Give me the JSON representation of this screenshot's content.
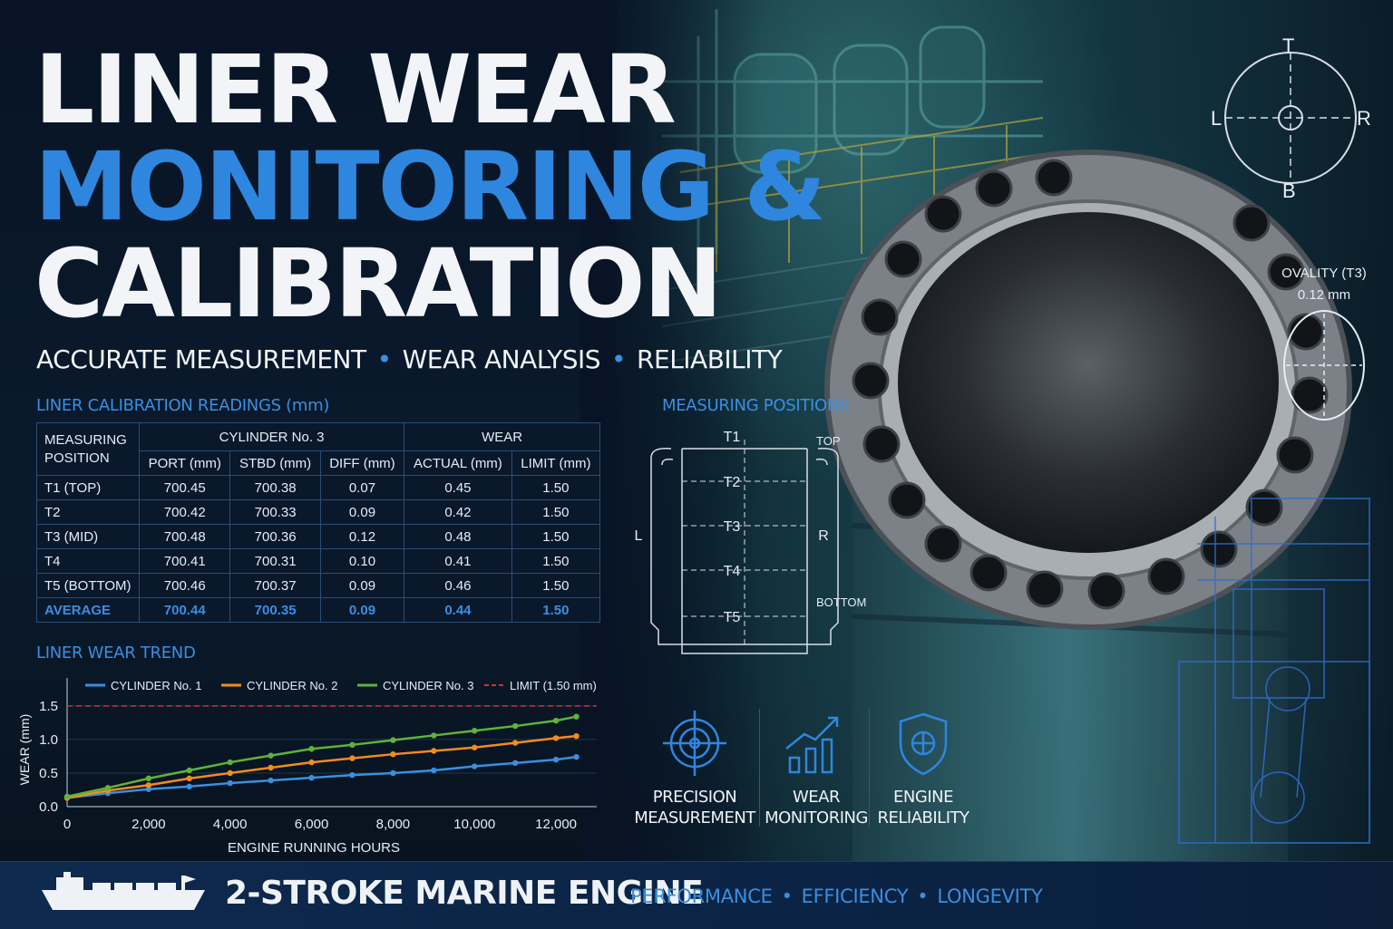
{
  "title": {
    "line1": "LINER WEAR",
    "line2": "MONITORING &",
    "line3": "CALIBRATION"
  },
  "tagline": [
    "ACCURATE MEASUREMENT",
    "WEAR ANALYSIS",
    "RELIABILITY"
  ],
  "colors": {
    "accent": "#2f86de",
    "background": "#07111f",
    "cyl1": "#3a8fe0",
    "cyl2": "#f28c1c",
    "cyl3": "#5fb33a",
    "limit": "#d03030"
  },
  "table": {
    "title": "LINER CALIBRATION READINGS (mm)",
    "header_pos_1": "MEASURING",
    "header_pos_2": "POSITION",
    "group_cylinder": "CYLINDER No. 3",
    "group_wear": "WEAR",
    "col_port": "PORT (mm)",
    "col_stbd": "STBD (mm)",
    "col_diff": "DIFF (mm)",
    "col_actual": "ACTUAL (mm)",
    "col_limit": "LIMIT (mm)",
    "rows": [
      {
        "pos": "T1 (TOP)",
        "port": "700.45",
        "stbd": "700.38",
        "diff": "0.07",
        "actual": "0.45",
        "limit": "1.50"
      },
      {
        "pos": "T2",
        "port": "700.42",
        "stbd": "700.33",
        "diff": "0.09",
        "actual": "0.42",
        "limit": "1.50"
      },
      {
        "pos": "T3 (MID)",
        "port": "700.48",
        "stbd": "700.36",
        "diff": "0.12",
        "actual": "0.48",
        "limit": "1.50"
      },
      {
        "pos": "T4",
        "port": "700.41",
        "stbd": "700.31",
        "diff": "0.10",
        "actual": "0.41",
        "limit": "1.50"
      },
      {
        "pos": "T5 (BOTTOM)",
        "port": "700.46",
        "stbd": "700.37",
        "diff": "0.09",
        "actual": "0.46",
        "limit": "1.50"
      }
    ],
    "average": {
      "pos": "AVERAGE",
      "port": "700.44",
      "stbd": "700.35",
      "diff": "0.09",
      "actual": "0.44",
      "limit": "1.50"
    }
  },
  "trend_title": "LINER WEAR TREND",
  "chart_data": {
    "type": "line",
    "xlabel": "ENGINE RUNNING HOURS",
    "ylabel": "WEAR (mm)",
    "xlim": [
      0,
      13000
    ],
    "ylim": [
      0,
      1.7
    ],
    "x_ticks": [
      0,
      2000,
      4000,
      6000,
      8000,
      10000,
      12000
    ],
    "x_tick_labels": [
      "0",
      "2,000",
      "4,000",
      "6,000",
      "8,000",
      "10,000",
      "12,000"
    ],
    "y_ticks": [
      0,
      0.5,
      1.0,
      1.5
    ],
    "y_tick_labels": [
      "0.0",
      "0.5",
      "1.0",
      "1.5"
    ],
    "x": [
      0,
      1000,
      2000,
      3000,
      4000,
      5000,
      6000,
      7000,
      8000,
      9000,
      10000,
      11000,
      12000,
      12500
    ],
    "series": [
      {
        "name": "CYLINDER No. 1",
        "color": "#3a8fe0",
        "values": [
          0.13,
          0.2,
          0.26,
          0.3,
          0.35,
          0.39,
          0.43,
          0.47,
          0.5,
          0.54,
          0.6,
          0.65,
          0.7,
          0.74
        ]
      },
      {
        "name": "CYLINDER No. 2",
        "color": "#f28c1c",
        "values": [
          0.13,
          0.24,
          0.32,
          0.42,
          0.5,
          0.58,
          0.66,
          0.72,
          0.78,
          0.83,
          0.88,
          0.95,
          1.02,
          1.05
        ]
      },
      {
        "name": "CYLINDER No. 3",
        "color": "#5fb33a",
        "values": [
          0.15,
          0.28,
          0.42,
          0.54,
          0.66,
          0.76,
          0.86,
          0.92,
          0.99,
          1.06,
          1.13,
          1.2,
          1.28,
          1.34
        ]
      }
    ],
    "limit": {
      "name": "LIMIT (1.50 mm)",
      "value": 1.5,
      "color": "#d03030"
    },
    "legend": "top"
  },
  "positions": {
    "title": "MEASURING POSITIONS",
    "marks": [
      "T1",
      "T2",
      "T3",
      "T4",
      "T5"
    ],
    "left": "L",
    "right": "R",
    "top": "TOP",
    "bottom": "BOTTOM"
  },
  "compass": {
    "t": "T",
    "b": "B",
    "l": "L",
    "r": "R"
  },
  "ovality": {
    "label": "OVALITY (T3)",
    "value": "0.12 mm"
  },
  "features": [
    {
      "line1": "PRECISION",
      "line2": "MEASUREMENT",
      "icon": "target-icon"
    },
    {
      "line1": "WEAR",
      "line2": "MONITORING",
      "icon": "bar-chart-trend-icon"
    },
    {
      "line1": "ENGINE",
      "line2": "RELIABILITY",
      "icon": "shield-icon"
    }
  ],
  "footer": {
    "engine": "2-STROKE MARINE ENGINE",
    "values": [
      "PERFORMANCE",
      "EFFICIENCY",
      "LONGEVITY"
    ]
  }
}
